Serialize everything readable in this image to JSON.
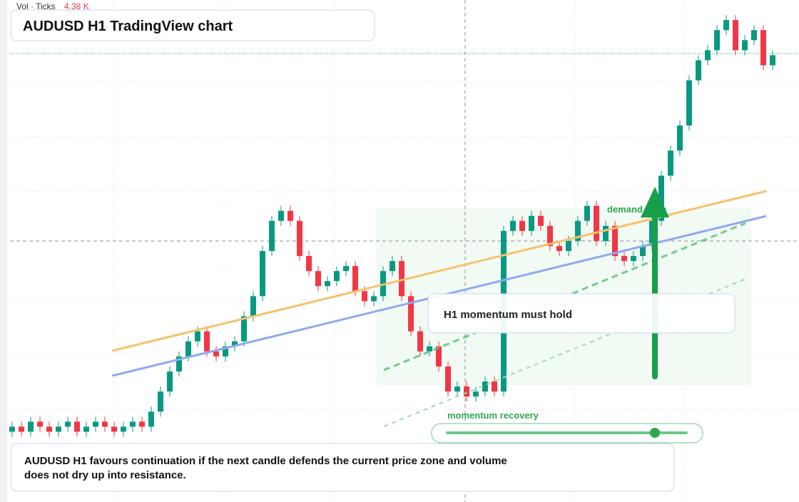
{
  "header": {
    "volume_label": "Vol · Ticks",
    "volume_value": "4.38 K",
    "title": "AUDUSD H1 TradingView chart"
  },
  "chart_data": {
    "type": "candlestick",
    "ylim": [
      0,
      100
    ],
    "up_color": "#089981",
    "down_color": "#f23645",
    "ohlc": [
      [
        14,
        16,
        13,
        15
      ],
      [
        15,
        16,
        13,
        14
      ],
      [
        14,
        17,
        13,
        16
      ],
      [
        16,
        17,
        14,
        15
      ],
      [
        15,
        16,
        13,
        14
      ],
      [
        14,
        16,
        13,
        15
      ],
      [
        15,
        17,
        14,
        16
      ],
      [
        16,
        17,
        13,
        14
      ],
      [
        14,
        16,
        13,
        15
      ],
      [
        15,
        17,
        14,
        16
      ],
      [
        16,
        17,
        14,
        15
      ],
      [
        15,
        16,
        13,
        14
      ],
      [
        14,
        16,
        13,
        15
      ],
      [
        15,
        17,
        14,
        16
      ],
      [
        16,
        17,
        14,
        15
      ],
      [
        15,
        19,
        14,
        18
      ],
      [
        18,
        23,
        17,
        22
      ],
      [
        22,
        27,
        21,
        26
      ],
      [
        26,
        30,
        25,
        29
      ],
      [
        29,
        33,
        28,
        32
      ],
      [
        32,
        35,
        31,
        34
      ],
      [
        34,
        35,
        29,
        30
      ],
      [
        30,
        31,
        28,
        29
      ],
      [
        29,
        32,
        28,
        31
      ],
      [
        31,
        33,
        30,
        32
      ],
      [
        32,
        38,
        31,
        37
      ],
      [
        37,
        42,
        36,
        41
      ],
      [
        41,
        51,
        40,
        50
      ],
      [
        50,
        57,
        49,
        56
      ],
      [
        56,
        59,
        55,
        58
      ],
      [
        58,
        59,
        55,
        56
      ],
      [
        56,
        57,
        48,
        49
      ],
      [
        49,
        50,
        45,
        46
      ],
      [
        46,
        47,
        42,
        43
      ],
      [
        43,
        45,
        42,
        44
      ],
      [
        44,
        47,
        43,
        46
      ],
      [
        46,
        48,
        45,
        47
      ],
      [
        47,
        48,
        41,
        42
      ],
      [
        42,
        43,
        39,
        40
      ],
      [
        40,
        42,
        39,
        41
      ],
      [
        41,
        47,
        40,
        46
      ],
      [
        46,
        49,
        45,
        48
      ],
      [
        48,
        49,
        40,
        41
      ],
      [
        41,
        42,
        33,
        34
      ],
      [
        34,
        35,
        29,
        30
      ],
      [
        30,
        32,
        29,
        31
      ],
      [
        31,
        32,
        26,
        27
      ],
      [
        27,
        28,
        21,
        22
      ],
      [
        22,
        24,
        21,
        23
      ],
      [
        23,
        24,
        20,
        21
      ],
      [
        21,
        23,
        20,
        22
      ],
      [
        22,
        25,
        21,
        24
      ],
      [
        24,
        25,
        21,
        22
      ],
      [
        22,
        55,
        21,
        54
      ],
      [
        54,
        57,
        53,
        56
      ],
      [
        56,
        57,
        53,
        54
      ],
      [
        54,
        58,
        53,
        57
      ],
      [
        57,
        58,
        54,
        55
      ],
      [
        55,
        56,
        50,
        51
      ],
      [
        51,
        52,
        49,
        50
      ],
      [
        50,
        53,
        49,
        52
      ],
      [
        52,
        57,
        51,
        56
      ],
      [
        56,
        60,
        55,
        59
      ],
      [
        59,
        60,
        51,
        52
      ],
      [
        52,
        56,
        51,
        55
      ],
      [
        55,
        56,
        48,
        49
      ],
      [
        49,
        50,
        47,
        48
      ],
      [
        48,
        50,
        47,
        49
      ],
      [
        49,
        52,
        48,
        51
      ],
      [
        51,
        57,
        50,
        56
      ],
      [
        56,
        66,
        55,
        65
      ],
      [
        65,
        71,
        64,
        70
      ],
      [
        70,
        76,
        69,
        75
      ],
      [
        75,
        85,
        74,
        84
      ],
      [
        84,
        89,
        83,
        88
      ],
      [
        88,
        91,
        87,
        90
      ],
      [
        90,
        95,
        89,
        94
      ],
      [
        94,
        97,
        93,
        96
      ],
      [
        96,
        97,
        89,
        90
      ],
      [
        90,
        93,
        89,
        92
      ],
      [
        92,
        95,
        91,
        94
      ],
      [
        94,
        95,
        86,
        87
      ],
      [
        87,
        90,
        86,
        89
      ]
    ]
  },
  "annotations": {
    "demand_zone": "demand zone",
    "hold": "H1 momentum must hold",
    "recovery": "momentum recovery"
  },
  "caption": "AUDUSD H1 favours continuation if the next candle defends the current price zone and volume does not dry up into resistance."
}
